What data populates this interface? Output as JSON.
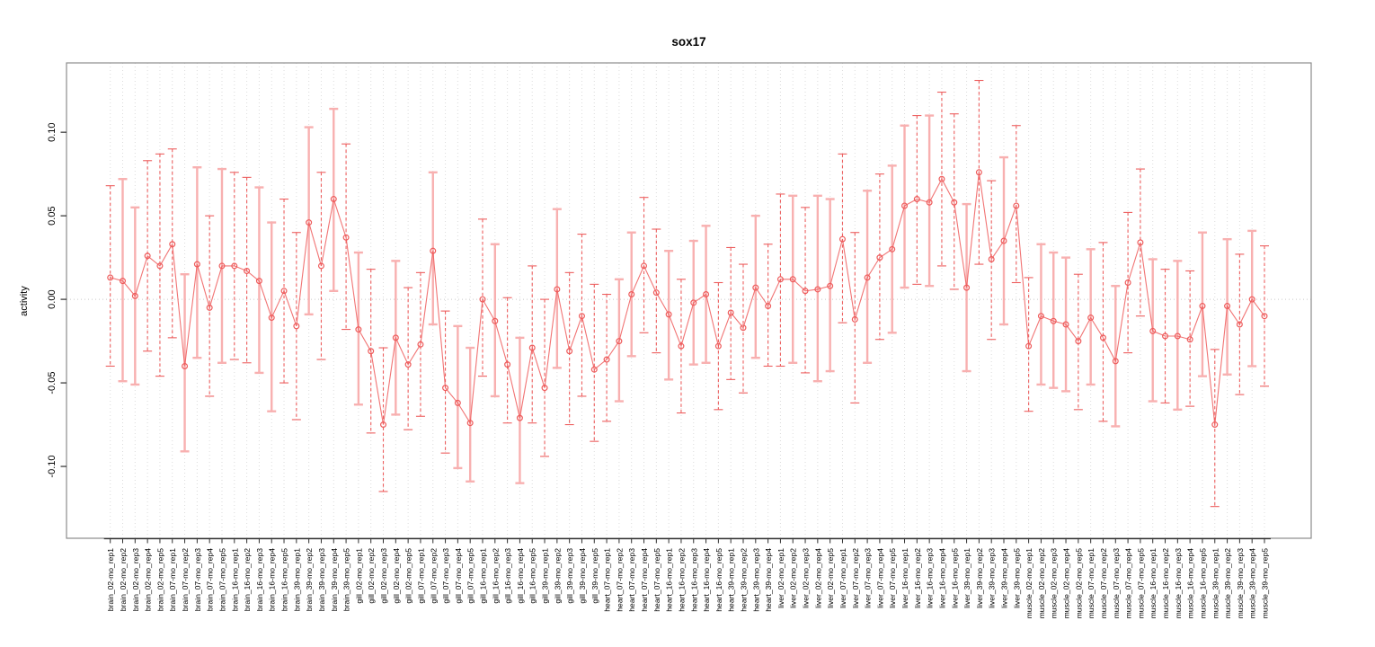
{
  "chart_data": {
    "type": "scatter",
    "subtype": "points-with-error-bars",
    "title": "sox17",
    "xlabel": "",
    "ylabel": "activity",
    "ylim": [
      -0.143,
      0.1415
    ],
    "yticks": [
      -0.1,
      -0.05,
      0.0,
      0.05,
      0.1
    ],
    "ytick_labels": [
      "-0.10",
      "-0.05",
      "0.00",
      "0.05",
      "0.10"
    ],
    "grid": {
      "vertical_dotted_per_category": true,
      "horizontal_dotted_zero_line": true,
      "legend": "none"
    },
    "categories": [
      "brain_02-mo_rep1",
      "brain_02-mo_rep2",
      "brain_02-mo_rep3",
      "brain_02-mo_rep4",
      "brain_02-mo_rep5",
      "brain_07-mo_rep1",
      "brain_07-mo_rep2",
      "brain_07-mo_rep3",
      "brain_07-mo_rep4",
      "brain_07-mo_rep5",
      "brain_16-mo_rep1",
      "brain_16-mo_rep2",
      "brain_16-mo_rep3",
      "brain_16-mo_rep4",
      "brain_16-mo_rep5",
      "brain_39-mo_rep1",
      "brain_39-mo_rep2",
      "brain_39-mo_rep3",
      "brain_39-mo_rep4",
      "brain_39-mo_rep5",
      "gill_02-mo_rep1",
      "gill_02-mo_rep2",
      "gill_02-mo_rep3",
      "gill_02-mo_rep4",
      "gill_02-mo_rep5",
      "gill_07-mo_rep1",
      "gill_07-mo_rep2",
      "gill_07-mo_rep3",
      "gill_07-mo_rep4",
      "gill_07-mo_rep5",
      "gill_16-mo_rep1",
      "gill_16-mo_rep2",
      "gill_16-mo_rep3",
      "gill_16-mo_rep4",
      "gill_16-mo_rep5",
      "gill_39-mo_rep1",
      "gill_39-mo_rep2",
      "gill_39-mo_rep3",
      "gill_39-mo_rep4",
      "gill_39-mo_rep5",
      "heart_07-mo_rep1",
      "heart_07-mo_rep2",
      "heart_07-mo_rep3",
      "heart_07-mo_rep4",
      "heart_07-mo_rep5",
      "heart_16-mo_rep1",
      "heart_16-mo_rep2",
      "heart_16-mo_rep3",
      "heart_16-mo_rep4",
      "heart_16-mo_rep5",
      "heart_39-mo_rep1",
      "heart_39-mo_rep2",
      "heart_39-mo_rep3",
      "heart_39-mo_rep4",
      "liver_02-mo_rep1",
      "liver_02-mo_rep2",
      "liver_02-mo_rep3",
      "liver_02-mo_rep4",
      "liver_02-mo_rep5",
      "liver_07-mo_rep1",
      "liver_07-mo_rep2",
      "liver_07-mo_rep3",
      "liver_07-mo_rep4",
      "liver_07-mo_rep5",
      "liver_16-mo_rep1",
      "liver_16-mo_rep2",
      "liver_16-mo_rep3",
      "liver_16-mo_rep4",
      "liver_16-mo_rep5",
      "liver_39-mo_rep1",
      "liver_39-mo_rep2",
      "liver_39-mo_rep3",
      "liver_39-mo_rep4",
      "liver_39-mo_rep5",
      "muscle_02-mo_rep1",
      "muscle_02-mo_rep2",
      "muscle_02-mo_rep3",
      "muscle_02-mo_rep4",
      "muscle_02-mo_rep5",
      "muscle_07-mo_rep1",
      "muscle_07-mo_rep2",
      "muscle_07-mo_rep3",
      "muscle_07-mo_rep4",
      "muscle_07-mo_rep5",
      "muscle_16-mo_rep1",
      "muscle_16-mo_rep2",
      "muscle_16-mo_rep3",
      "muscle_16-mo_rep4",
      "muscle_16-mo_rep5",
      "muscle_39-mo_rep1",
      "muscle_39-mo_rep2",
      "muscle_39-mo_rep3",
      "muscle_39-mo_rep4",
      "muscle_39-mo_rep5"
    ],
    "series": [
      {
        "name": "activity",
        "values": [
          0.013,
          0.011,
          0.002,
          0.026,
          0.02,
          0.033,
          -0.04,
          0.021,
          -0.005,
          0.02,
          0.02,
          0.017,
          0.011,
          -0.011,
          0.005,
          -0.016,
          0.046,
          0.02,
          0.06,
          0.037,
          -0.018,
          -0.031,
          -0.075,
          -0.023,
          -0.039,
          -0.027,
          0.029,
          -0.053,
          -0.062,
          -0.074,
          0.0,
          -0.013,
          -0.039,
          -0.071,
          -0.029,
          -0.053,
          0.006,
          -0.031,
          -0.01,
          -0.042,
          -0.036,
          -0.025,
          0.003,
          0.02,
          0.004,
          -0.009,
          -0.028,
          -0.002,
          0.003,
          -0.028,
          -0.008,
          -0.017,
          0.007,
          -0.004,
          0.012,
          0.012,
          0.005,
          0.006,
          0.008,
          0.036,
          -0.012,
          0.013,
          0.025,
          0.03,
          0.056,
          0.06,
          0.058,
          0.072,
          0.058,
          0.007,
          0.076,
          0.024,
          0.035,
          0.056,
          -0.028,
          -0.01,
          -0.013,
          -0.015,
          -0.025,
          -0.011,
          -0.023,
          -0.037,
          0.01,
          0.034,
          -0.019,
          -0.022,
          -0.022,
          -0.024,
          -0.004,
          -0.075,
          -0.004,
          -0.015,
          0.0,
          -0.01
        ],
        "ci_lower": [
          -0.04,
          -0.049,
          -0.051,
          -0.031,
          -0.046,
          -0.023,
          -0.091,
          -0.035,
          -0.058,
          -0.038,
          -0.036,
          -0.038,
          -0.044,
          -0.067,
          -0.05,
          -0.072,
          -0.009,
          -0.036,
          0.005,
          -0.018,
          -0.063,
          -0.08,
          -0.115,
          -0.069,
          -0.078,
          -0.07,
          -0.015,
          -0.092,
          -0.101,
          -0.109,
          -0.046,
          -0.058,
          -0.074,
          -0.11,
          -0.074,
          -0.094,
          -0.041,
          -0.075,
          -0.058,
          -0.085,
          -0.073,
          -0.061,
          -0.034,
          -0.02,
          -0.032,
          -0.048,
          -0.068,
          -0.039,
          -0.038,
          -0.066,
          -0.048,
          -0.056,
          -0.035,
          -0.04,
          -0.04,
          -0.038,
          -0.044,
          -0.049,
          -0.043,
          -0.014,
          -0.062,
          -0.038,
          -0.024,
          -0.02,
          0.007,
          0.009,
          0.008,
          0.02,
          0.006,
          -0.043,
          0.021,
          -0.024,
          -0.015,
          0.01,
          -0.067,
          -0.051,
          -0.053,
          -0.055,
          -0.066,
          -0.051,
          -0.073,
          -0.076,
          -0.032,
          -0.01,
          -0.061,
          -0.062,
          -0.066,
          -0.064,
          -0.046,
          -0.124,
          -0.045,
          -0.057,
          -0.04,
          -0.052
        ],
        "ci_upper": [
          0.068,
          0.072,
          0.055,
          0.083,
          0.087,
          0.09,
          0.015,
          0.079,
          0.05,
          0.078,
          0.076,
          0.073,
          0.067,
          0.046,
          0.06,
          0.04,
          0.103,
          0.076,
          0.114,
          0.093,
          0.028,
          0.018,
          -0.029,
          0.023,
          0.007,
          0.016,
          0.076,
          -0.007,
          -0.016,
          -0.029,
          0.048,
          0.033,
          0.001,
          -0.023,
          0.02,
          0.0,
          0.054,
          0.016,
          0.039,
          0.009,
          0.003,
          0.012,
          0.04,
          0.061,
          0.042,
          0.029,
          0.012,
          0.035,
          0.044,
          0.01,
          0.031,
          0.021,
          0.05,
          0.033,
          0.063,
          0.062,
          0.055,
          0.062,
          0.06,
          0.087,
          0.04,
          0.065,
          0.075,
          0.08,
          0.104,
          0.11,
          0.11,
          0.124,
          0.111,
          0.057,
          0.131,
          0.071,
          0.085,
          0.104,
          0.013,
          0.033,
          0.028,
          0.025,
          0.015,
          0.03,
          0.034,
          0.008,
          0.052,
          0.078,
          0.024,
          0.018,
          0.023,
          0.017,
          0.04,
          -0.03,
          0.036,
          0.027,
          0.041,
          0.032
        ],
        "bar_style": [
          1,
          0,
          0,
          1,
          1,
          1,
          0,
          0,
          1,
          0,
          1,
          1,
          0,
          0,
          1,
          1,
          0,
          1,
          0,
          1,
          0,
          1,
          1,
          0,
          1,
          1,
          0,
          1,
          0,
          0,
          1,
          0,
          1,
          0,
          1,
          1,
          0,
          1,
          1,
          1,
          1,
          0,
          0,
          1,
          1,
          0,
          1,
          0,
          0,
          1,
          1,
          1,
          0,
          1,
          1,
          0,
          1,
          0,
          0,
          1,
          1,
          0,
          1,
          0,
          0,
          1,
          0,
          1,
          1,
          0,
          1,
          1,
          0,
          1,
          1,
          0,
          0,
          0,
          1,
          0,
          1,
          0,
          1,
          1,
          0,
          1,
          0,
          1,
          0,
          1,
          0,
          1,
          0,
          1
        ]
      }
    ],
    "colors": {
      "point": "#ee5c5c",
      "line": "#ee5c5c",
      "bar_dashed": "#ed5f5f",
      "bar_solid": "#f8b0b0",
      "grid": "#dcdcdc",
      "zero_line": "#c9c9c9",
      "box": "#8c8c8c",
      "axis": "#2f2f2f",
      "text": "#000000"
    }
  }
}
